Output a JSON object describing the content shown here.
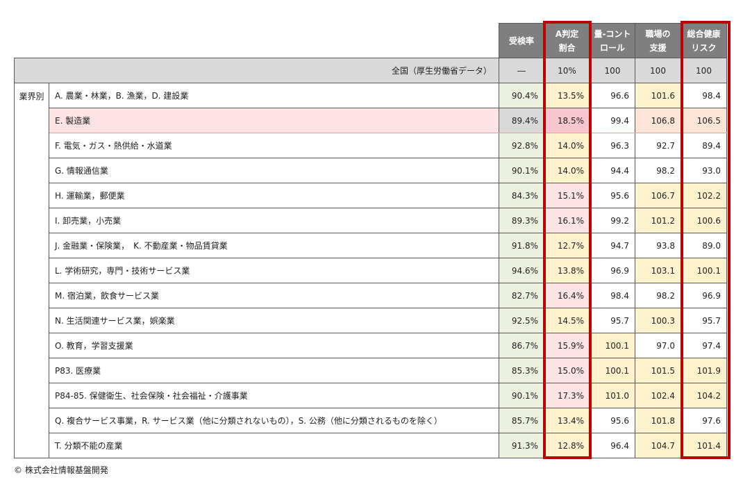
{
  "chart_data": {
    "type": "table",
    "columns": [
      "受検率",
      "A判定\n割合",
      "量-コント\nロール",
      "職場の\n支援",
      "総合健康\nリスク"
    ],
    "national": {
      "label": "全国（厚生労働省データ）",
      "values": [
        "―",
        "10%",
        "100",
        "100",
        "100"
      ]
    },
    "group_label": "業界別",
    "rows": [
      {
        "name": "A. 農業・林業，B. 漁業，D. 建設業",
        "values": [
          "90.4%",
          "13.5%",
          "96.6",
          "101.6",
          "98.4"
        ],
        "colors": [
          "#ebf1de",
          "#fff2cc",
          "#ffffff",
          "#fff2cc",
          "#ffffff"
        ]
      },
      {
        "name": "E. 製造業",
        "values": [
          "89.4%",
          "18.5%",
          "99.4",
          "106.8",
          "106.5"
        ],
        "colors": [
          "#d9d9d9",
          "#f7c6ce",
          "#ffffff",
          "#fce4d6",
          "#fce4d6"
        ],
        "highlight": true
      },
      {
        "name": "F. 電気・ガス・熱供給・水道業",
        "values": [
          "92.8%",
          "14.0%",
          "96.3",
          "92.7",
          "89.4"
        ],
        "colors": [
          "#ebf1de",
          "#fff2cc",
          "#ffffff",
          "#ffffff",
          "#ffffff"
        ]
      },
      {
        "name": "G. 情報通信業",
        "values": [
          "90.1%",
          "14.0%",
          "94.4",
          "98.2",
          "93.0"
        ],
        "colors": [
          "#ebf1de",
          "#fff2cc",
          "#ffffff",
          "#ffffff",
          "#ffffff"
        ]
      },
      {
        "name": "H. 運輸業，郵便業",
        "values": [
          "84.3%",
          "15.1%",
          "95.6",
          "106.7",
          "102.2"
        ],
        "colors": [
          "#ebf1de",
          "#fde3e3",
          "#ffffff",
          "#fff2cc",
          "#fff2cc"
        ]
      },
      {
        "name": "I. 卸売業，小売業",
        "values": [
          "89.3%",
          "16.1%",
          "99.2",
          "101.2",
          "100.6"
        ],
        "colors": [
          "#ebf1de",
          "#fde3e3",
          "#ffffff",
          "#fff2cc",
          "#fff2cc"
        ]
      },
      {
        "name": "J. 金融業・保険業，　K. 不動産業・物品賃貸業",
        "values": [
          "91.8%",
          "12.7%",
          "94.7",
          "93.8",
          "89.0"
        ],
        "colors": [
          "#ebf1de",
          "#fff2cc",
          "#ffffff",
          "#ffffff",
          "#ffffff"
        ]
      },
      {
        "name": "L. 学術研究，専門・技術サービス業",
        "values": [
          "94.6%",
          "13.8%",
          "96.9",
          "103.1",
          "100.1"
        ],
        "colors": [
          "#ebf1de",
          "#fff2cc",
          "#ffffff",
          "#fff2cc",
          "#fff2cc"
        ]
      },
      {
        "name": "M. 宿泊業，飲食サービス業",
        "values": [
          "82.7%",
          "16.4%",
          "98.4",
          "98.2",
          "96.9"
        ],
        "colors": [
          "#ebf1de",
          "#fde3e3",
          "#ffffff",
          "#ffffff",
          "#ffffff"
        ]
      },
      {
        "name": "N. 生活関連サービス業，娯楽業",
        "values": [
          "92.5%",
          "14.5%",
          "95.7",
          "100.3",
          "95.7"
        ],
        "colors": [
          "#ebf1de",
          "#fff2cc",
          "#ffffff",
          "#fff2cc",
          "#ffffff"
        ]
      },
      {
        "name": "O. 教育，学習支援業",
        "values": [
          "86.7%",
          "15.9%",
          "100.1",
          "97.0",
          "97.4"
        ],
        "colors": [
          "#ebf1de",
          "#fde3e3",
          "#fff2cc",
          "#ffffff",
          "#ffffff"
        ]
      },
      {
        "name": "P83. 医療業",
        "values": [
          "85.3%",
          "15.0%",
          "100.1",
          "101.5",
          "101.9"
        ],
        "colors": [
          "#ebf1de",
          "#fde3e3",
          "#fff2cc",
          "#fff2cc",
          "#fff2cc"
        ]
      },
      {
        "name": "P84-85. 保健衛生、社会保険・社会福祉・介護事業",
        "values": [
          "90.1%",
          "17.3%",
          "101.0",
          "102.4",
          "104.2"
        ],
        "colors": [
          "#ebf1de",
          "#fde3e3",
          "#fff2cc",
          "#fff2cc",
          "#fff2cc"
        ]
      },
      {
        "name": "Q. 複合サービス事業，R. サービス業（他に分類されないもの），S. 公務（他に分類されるものを除く）",
        "values": [
          "85.7%",
          "13.4%",
          "95.6",
          "101.8",
          "97.6"
        ],
        "colors": [
          "#ebf1de",
          "#fff2cc",
          "#ffffff",
          "#fff2cc",
          "#ffffff"
        ]
      },
      {
        "name": "T. 分類不能の産業",
        "values": [
          "91.3%",
          "12.8%",
          "96.4",
          "104.7",
          "101.4"
        ],
        "colors": [
          "#ebf1de",
          "#fff2cc",
          "#ffffff",
          "#fff2cc",
          "#fff2cc"
        ]
      }
    ],
    "highlighted_columns": [
      "A判定\n割合",
      "総合健康\nリスク"
    ],
    "highlight_color": "#c00000"
  },
  "footer": {
    "copyright": "© 株式会社情報基盤開発"
  }
}
